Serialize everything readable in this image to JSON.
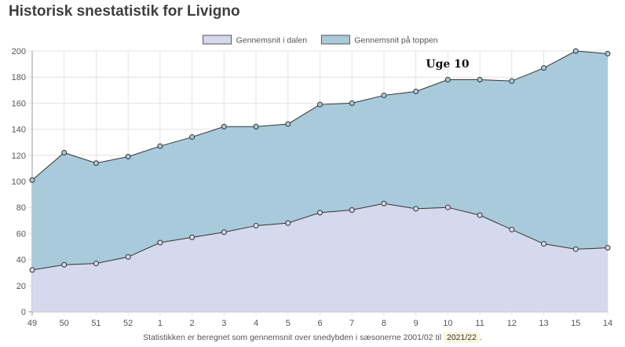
{
  "header": {
    "title": "Historisk snestatistik for Livigno"
  },
  "chart_data": {
    "type": "area",
    "title": "",
    "xlabel": "",
    "ylabel": "",
    "categories": [
      "49",
      "50",
      "51",
      "52",
      "1",
      "2",
      "3",
      "4",
      "5",
      "6",
      "7",
      "8",
      "9",
      "10",
      "11",
      "12",
      "13",
      "15",
      "14"
    ],
    "ylim": [
      0,
      200
    ],
    "yticks": [
      0,
      20,
      40,
      60,
      80,
      100,
      120,
      140,
      160,
      180,
      200
    ],
    "grid": true,
    "legend_position": "top-center",
    "series": [
      {
        "name": "Gennemsnit i dalen",
        "color": "#d5d9ee",
        "values": [
          32,
          36,
          37,
          42,
          53,
          57,
          61,
          66,
          68,
          76,
          78,
          83,
          79,
          80,
          74,
          63,
          52,
          48,
          49
        ]
      },
      {
        "name": "Gennemsnit på toppen",
        "color": "#a8cadb",
        "values": [
          101,
          122,
          114,
          119,
          127,
          134,
          142,
          142,
          144,
          159,
          160,
          166,
          169,
          178,
          178,
          177,
          187,
          200,
          198
        ]
      }
    ],
    "annotations": [
      {
        "text": "Uge 10",
        "category": "10"
      }
    ]
  },
  "footer": {
    "note": "Statistikken er beregnet som gennemsnit over snedybden i sæsonerne 2001/02 til",
    "season": "2021/22",
    "end": "."
  }
}
